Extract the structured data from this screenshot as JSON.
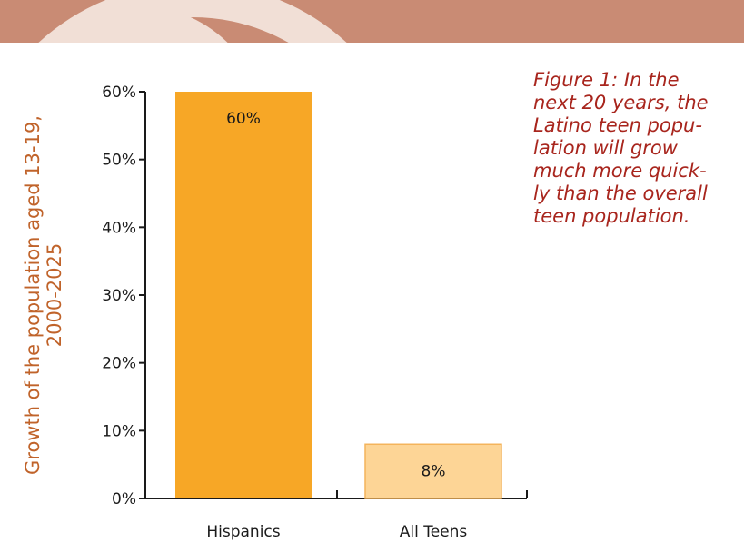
{
  "chart_data": {
    "type": "bar",
    "title": "",
    "caption_lines": [
      "Figure 1: In the",
      "next 20 years, the",
      "Latino teen popu-",
      "lation will grow",
      "much more quick-",
      "ly than the overall",
      "teen population."
    ],
    "ylabel_lines": [
      "Growth of the population aged 13-19,",
      "2000-2025"
    ],
    "xlabel": "",
    "categories": [
      "Hispanics",
      "All Teens"
    ],
    "values": [
      60,
      8
    ],
    "data_labels": [
      "60%",
      "8%"
    ],
    "ylim": [
      0,
      60
    ],
    "y_ticks": [
      {
        "value": 0,
        "label": "0%"
      },
      {
        "value": 10,
        "label": "10%"
      },
      {
        "value": 20,
        "label": "20%"
      },
      {
        "value": 30,
        "label": "30%"
      },
      {
        "value": 40,
        "label": "40%"
      },
      {
        "value": 50,
        "label": "50%"
      },
      {
        "value": 60,
        "label": "60%"
      }
    ],
    "grid": false,
    "legend": "none"
  },
  "colors": {
    "banner": "#c98b74",
    "banner_swirl": "#f1dfd6",
    "bar_hispanics": "#f7a726",
    "bar_all_teens": "#fdd596",
    "bar_all_teens_border": "#f4b45b",
    "axis": "#1a1a1a",
    "ylabel": "#c0632a",
    "caption": "#a8251d",
    "text": "#1a1a1a"
  }
}
